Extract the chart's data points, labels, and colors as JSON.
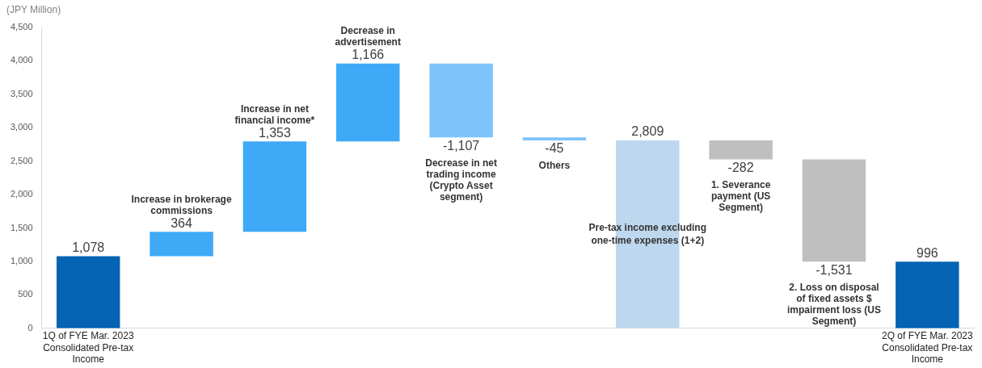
{
  "chart_data": {
    "type": "bar",
    "ylabel": "(JPY Million)",
    "categories": [
      "1Q of FYE Mar. 2023 Consolidated Pre-tax Income",
      "Increase in brokerage commissions",
      "Increase in net financial income*",
      "Decrease in advertisement",
      "Decrease in net trading income (Crypto Asset segment)",
      "Others",
      "Pre-tax income excluding one-time expenses (1+2)",
      "1. Severance payment (US Segment)",
      "2. Loss on disposal of fixed assets $ impairment loss (US Segment)",
      "2Q of FYE Mar. 2023 Consolidated Pre-tax Income"
    ],
    "values": [
      1078,
      364,
      1353,
      1166,
      -1107,
      -45,
      2809,
      -282,
      -1531,
      996
    ],
    "base": [
      0,
      1078,
      1442,
      2795,
      3961,
      2854,
      0,
      2809,
      2527,
      0
    ],
    "colors": [
      "#0563b4",
      "#3da9f7",
      "#3da9f7",
      "#3da9f7",
      "#7dc4fa",
      "#7dc4fa",
      "#bdd7ee",
      "#bfbfbf",
      "#bfbfbf",
      "#0563b4"
    ],
    "ylim": [
      0,
      4500
    ],
    "yticks": [
      {
        "value": 0,
        "label": "0"
      },
      {
        "value": 500,
        "label": "500"
      },
      {
        "value": 1000,
        "label": "1,000"
      },
      {
        "value": 1500,
        "label": "1,500"
      },
      {
        "value": 2000,
        "label": "2,000"
      },
      {
        "value": 2500,
        "label": "2,500"
      },
      {
        "value": 3000,
        "label": "3,000"
      },
      {
        "value": 3500,
        "label": "3,500"
      },
      {
        "value": 4000,
        "label": "4,000"
      },
      {
        "value": 4500,
        "label": "4,500"
      }
    ],
    "value_labels": [
      "1,078",
      "364",
      "1,353",
      "1,166",
      "-1,107",
      "-45",
      "2,809",
      "-282",
      "-1,531",
      "996"
    ],
    "grid": false,
    "legend": false
  }
}
